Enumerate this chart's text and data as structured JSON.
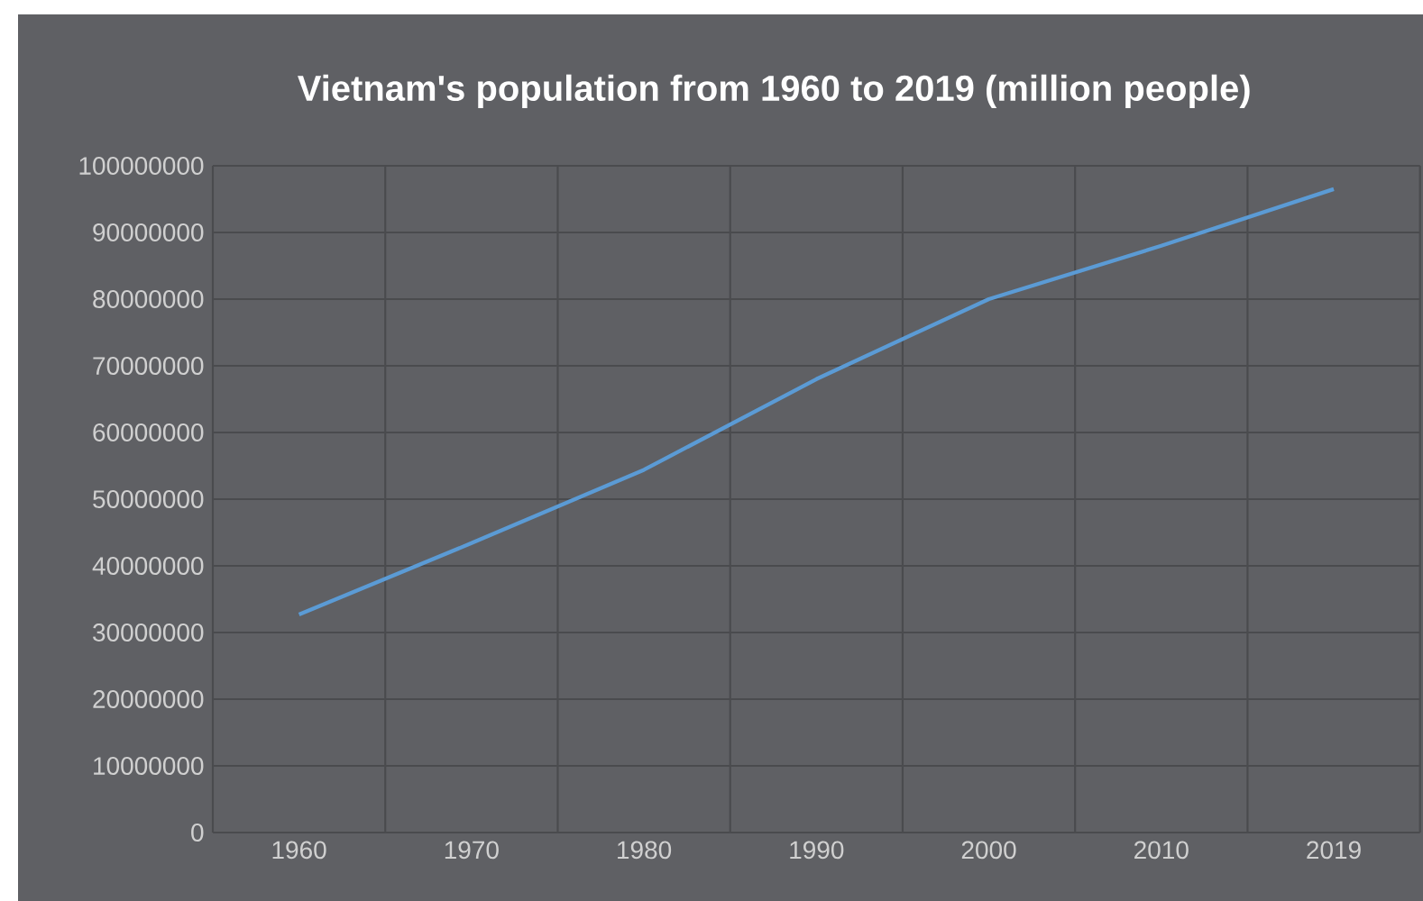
{
  "chart_data": {
    "type": "line",
    "title": "Vietnam's population from 1960 to 2019 (million people)",
    "categories": [
      "1960",
      "1970",
      "1980",
      "1990",
      "2000",
      "2010",
      "2019"
    ],
    "series": [
      {
        "color": "#5b9bd5",
        "values": [
          32700000,
          43400000,
          54400000,
          68000000,
          80000000,
          88000000,
          96500000
        ]
      }
    ],
    "ylim": [
      0,
      100000000
    ],
    "yticks": [
      0,
      10000000,
      20000000,
      30000000,
      40000000,
      50000000,
      60000000,
      70000000,
      80000000,
      90000000,
      100000000
    ],
    "grid": true,
    "line_style": "solid"
  }
}
